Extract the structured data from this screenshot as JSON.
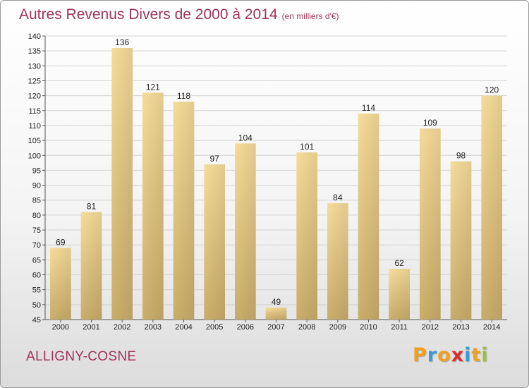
{
  "title": "Autres Revenus Divers de 2000 à 2014",
  "unit": "(en milliers d'€)",
  "commune": "ALLIGNY-COSNE",
  "logo": {
    "letters": [
      "P",
      "r",
      "o",
      "x",
      "i",
      "t",
      "i"
    ],
    "colors": [
      "#f0a020",
      "#3a9ad9",
      "#f0a020",
      "#d9302c",
      "#3a9ad9",
      "#f0a020",
      "#9bc23c"
    ]
  },
  "colors": {
    "bar_light": "#f6dc9a",
    "bar_dark": "#c9ad6a",
    "title": "#a0325a"
  },
  "chart_data": {
    "type": "bar",
    "categories": [
      "2000",
      "2001",
      "2002",
      "2003",
      "2004",
      "2005",
      "2006",
      "2007",
      "2008",
      "2009",
      "2010",
      "2011",
      "2012",
      "2013",
      "2014"
    ],
    "values": [
      69,
      81,
      136,
      121,
      118,
      97,
      104,
      49,
      101,
      84,
      114,
      62,
      109,
      98,
      120
    ],
    "ylim": [
      45,
      140
    ],
    "yticks": [
      45,
      50,
      55,
      60,
      65,
      70,
      75,
      80,
      85,
      90,
      95,
      100,
      105,
      110,
      115,
      120,
      125,
      130,
      135,
      140
    ],
    "grid": true
  }
}
